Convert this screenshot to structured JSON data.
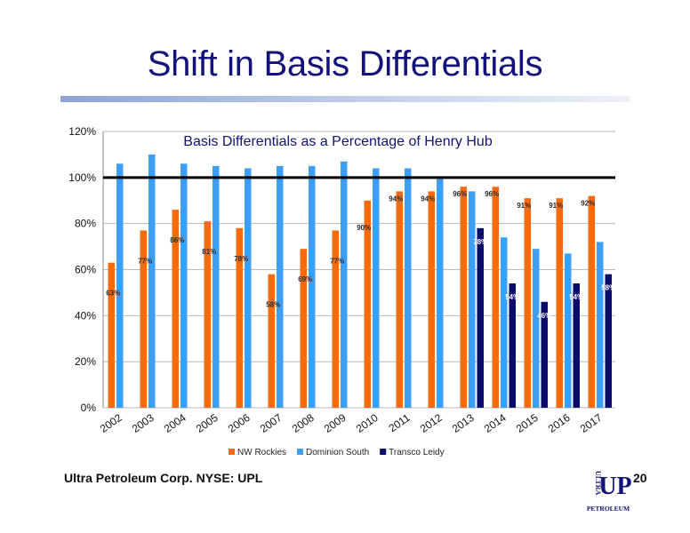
{
  "slide": {
    "title": "Shift in Basis Differentials",
    "footer": "Ultra Petroleum Corp. NYSE: UPL",
    "page_number": "20",
    "logo_text": {
      "top": "ULTRA",
      "mark": "UP",
      "bottom": "PETROLEUM"
    }
  },
  "colors": {
    "title": "#12127a",
    "nw_rockies": "#f96a0c",
    "dominion_south": "#3d9ef3",
    "transco_leidy": "#0b0b6b",
    "reference_line": "#000000",
    "logo": "#12127a"
  },
  "chart_data": {
    "type": "bar",
    "title": "Basis Differentials as a Percentage of Henry Hub",
    "xlabel": "",
    "ylabel": "",
    "ylim": [
      0,
      120
    ],
    "yticks": [
      "0%",
      "20%",
      "40%",
      "60%",
      "80%",
      "100%",
      "120%"
    ],
    "ytick_values": [
      0,
      20,
      40,
      60,
      80,
      100,
      120
    ],
    "grid": true,
    "legend": "bottom",
    "reference_line": 100,
    "categories": [
      "2002",
      "2003",
      "2004",
      "2005",
      "2006",
      "2007",
      "2008",
      "2009",
      "2010",
      "2011",
      "2012",
      "2013",
      "2014",
      "2015",
      "2016",
      "2017"
    ],
    "series": [
      {
        "name": "NW Rockies",
        "values": [
          63,
          77,
          86,
          81,
          78,
          58,
          69,
          77,
          90,
          94,
          94,
          96,
          96,
          91,
          91,
          92
        ],
        "labels": [
          "63%",
          "77%",
          "86%",
          "81%",
          "78%",
          "58%",
          "69%",
          "77%",
          "90%",
          "94%",
          "94%",
          "96%",
          "96%",
          "91%",
          "91%",
          "92%"
        ]
      },
      {
        "name": "Dominion South",
        "values": [
          106,
          110,
          106,
          105,
          104,
          105,
          105,
          107,
          104,
          104,
          100,
          94,
          74,
          69,
          67,
          72
        ],
        "labels": []
      },
      {
        "name": "Transco Leidy",
        "values": [
          null,
          null,
          null,
          null,
          null,
          null,
          null,
          null,
          null,
          null,
          null,
          78,
          54,
          46,
          54,
          58
        ],
        "labels": [
          null,
          null,
          null,
          null,
          null,
          null,
          null,
          null,
          null,
          null,
          null,
          "78%",
          "54%",
          "46%",
          "54%",
          "58%"
        ]
      }
    ]
  }
}
